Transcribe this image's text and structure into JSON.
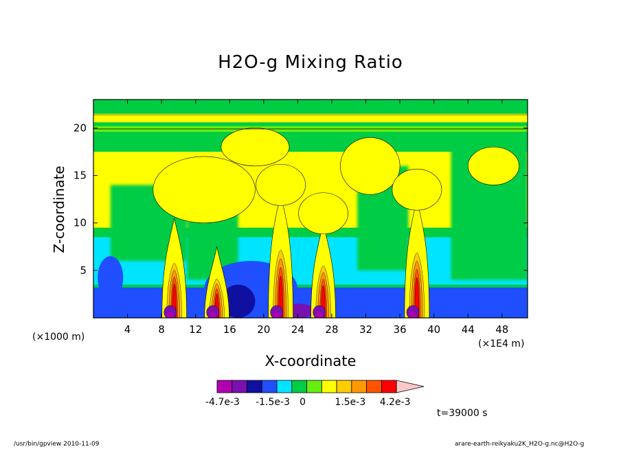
{
  "chart_data": {
    "type": "heatmap",
    "title": "H2O-g Mixing Ratio",
    "xlabel": "X-coordinate",
    "ylabel": "Z-coordinate",
    "x_unit_label": "(×1E4 m)",
    "y_unit_label": "(×1000 m)",
    "xlim": [
      0,
      51
    ],
    "ylim": [
      0,
      23
    ],
    "x_ticks": [
      4,
      8,
      12,
      16,
      20,
      24,
      28,
      32,
      36,
      40,
      44,
      48
    ],
    "y_ticks": [
      5,
      10,
      15,
      20
    ],
    "colorbar": {
      "tick_labels": [
        "-4.7e-3",
        "-1.5e-3",
        "0",
        "1.5e-3",
        "4.2e-3"
      ],
      "tick_values": [
        -0.0047,
        -0.0015,
        0,
        0.0015,
        0.0042
      ],
      "levels": [
        -0.0047,
        -0.0039,
        -0.0031,
        -0.0023,
        -0.0015,
        -0.0008,
        0,
        0.0005,
        0.001,
        0.0015,
        0.0024,
        0.0033,
        0.0042
      ],
      "colors": [
        "#b000b0",
        "#7a10b0",
        "#1010a0",
        "#1f4fff",
        "#00e5ff",
        "#00cc44",
        "#66ee11",
        "#ffff00",
        "#ffcc00",
        "#ff9900",
        "#ff5500",
        "#ff0000",
        "#ff8080",
        "#ffc8c8"
      ]
    },
    "time_label": "t=39000 s",
    "plumes": [
      {
        "x": 9.5,
        "top": 10.5,
        "anvil": 0
      },
      {
        "x": 14.5,
        "top": 7.5,
        "anvil": 0
      },
      {
        "x": 22.0,
        "top": 13.0,
        "anvil": 1
      },
      {
        "x": 27.0,
        "top": 10.0,
        "anvil": 1
      },
      {
        "x": 38.0,
        "top": 12.5,
        "anvil": 1
      }
    ]
  },
  "footer": {
    "left": "/usr/bin/gpview  2010-11-09",
    "right": "arare-earth-reikyaku2K_H2O-g.nc@H2O-g"
  }
}
